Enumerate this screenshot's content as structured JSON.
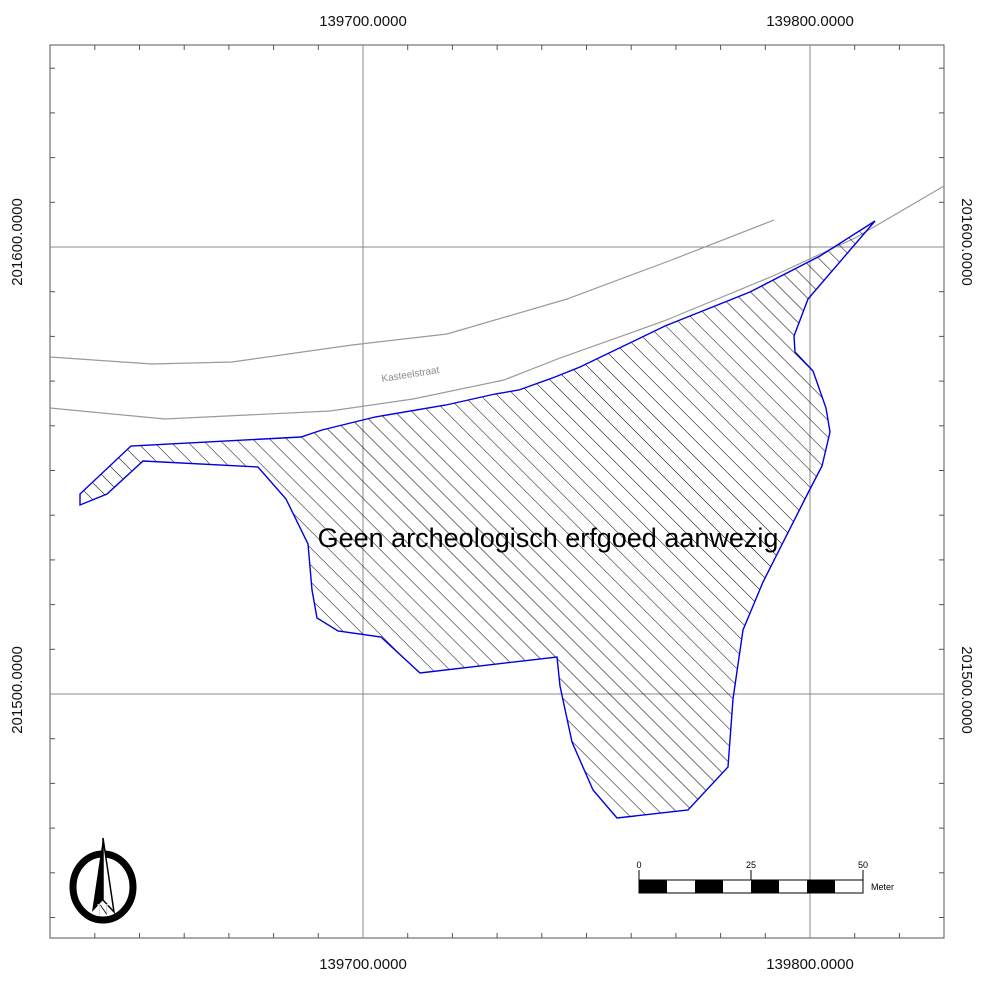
{
  "map": {
    "coords": {
      "x_top_left": "139700.0000",
      "x_top_right": "139800.0000",
      "x_bottom_left": "139700.0000",
      "x_bottom_right": "139800.0000",
      "y_left_upper": "201600.0000",
      "y_left_lower": "201500.0000",
      "y_right_upper": "201600.0000",
      "y_right_lower": "201500.0000"
    },
    "street_label": "Kasteelstraat",
    "zone_label": "Geen archeologisch erfgoed aanwezig",
    "colors": {
      "grid": "#8a8a8a",
      "street": "#9a9a9a",
      "polygon_outline": "#0000e0",
      "hatch": "#000000"
    }
  },
  "scale_bar": {
    "labels": [
      "0",
      "25",
      "50"
    ],
    "unit": "Meter"
  },
  "north_arrow": {
    "letter": "N",
    "icon": "north-arrow-icon"
  }
}
